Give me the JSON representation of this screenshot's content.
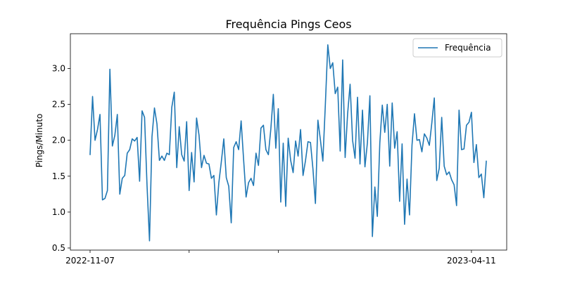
{
  "chart_data": {
    "type": "line",
    "title": "Frequência Pings Ceos",
    "xlabel": "",
    "ylabel": "Pings/Minuto",
    "ylim": [
      0.5,
      3.4
    ],
    "yticks": [
      "0.5",
      "1.0",
      "1.5",
      "2.0",
      "2.5",
      "3.0"
    ],
    "xticks_labeled": [
      {
        "label": "2022-11-07",
        "index": 0
      },
      {
        "label": "2023-04-11",
        "index": 154
      }
    ],
    "xticks_minor_index": [
      40,
      76,
      192
    ],
    "grid": false,
    "legend_position": "top-right",
    "colors": {
      "line": "#1f77b4"
    },
    "series": [
      {
        "name": "Frequência",
        "start_date": "2022-11-07",
        "values": [
          1.8,
          2.61,
          2.0,
          2.15,
          2.36,
          1.17,
          1.19,
          1.3,
          2.99,
          1.92,
          2.07,
          2.36,
          1.25,
          1.47,
          1.51,
          1.82,
          1.87,
          2.02,
          1.99,
          2.04,
          1.43,
          2.41,
          2.32,
          1.37,
          0.6,
          2.05,
          2.45,
          2.23,
          1.72,
          1.78,
          1.72,
          1.82,
          1.8,
          2.46,
          2.67,
          1.62,
          2.19,
          1.8,
          1.71,
          2.26,
          1.3,
          1.83,
          1.42,
          2.31,
          2.07,
          1.62,
          1.79,
          1.68,
          1.67,
          1.47,
          1.51,
          0.96,
          1.41,
          1.7,
          2.02,
          1.48,
          1.36,
          0.85,
          1.9,
          1.98,
          1.87,
          2.27,
          1.73,
          1.21,
          1.41,
          1.47,
          1.37,
          1.82,
          1.65,
          2.17,
          2.21,
          1.87,
          1.8,
          2.16,
          2.64,
          1.89,
          2.44,
          1.14,
          1.96,
          1.08,
          2.03,
          1.72,
          1.55,
          1.99,
          1.78,
          2.15,
          1.51,
          1.72,
          1.98,
          1.97,
          1.6,
          1.12,
          2.28,
          2.01,
          1.71,
          2.49,
          3.33,
          3.0,
          3.08,
          2.65,
          2.74,
          1.85,
          3.12,
          1.76,
          2.37,
          2.78,
          2.0,
          1.75,
          2.6,
          1.67,
          2.42,
          1.63,
          1.97,
          2.62,
          0.66,
          1.35,
          0.94,
          1.96,
          2.49,
          2.11,
          2.5,
          1.64,
          2.52,
          1.89,
          2.12,
          1.15,
          1.95,
          0.83,
          1.46,
          0.96,
          1.93,
          2.37,
          2.0,
          2.01,
          1.84,
          2.09,
          2.03,
          1.93,
          2.24,
          2.59,
          1.44,
          1.61,
          2.32,
          1.64,
          1.52,
          1.56,
          1.45,
          1.38,
          1.09,
          2.42,
          1.87,
          1.88,
          2.21,
          2.25,
          2.39,
          1.69,
          1.94,
          1.48,
          1.53,
          1.2,
          1.71
        ]
      }
    ]
  }
}
